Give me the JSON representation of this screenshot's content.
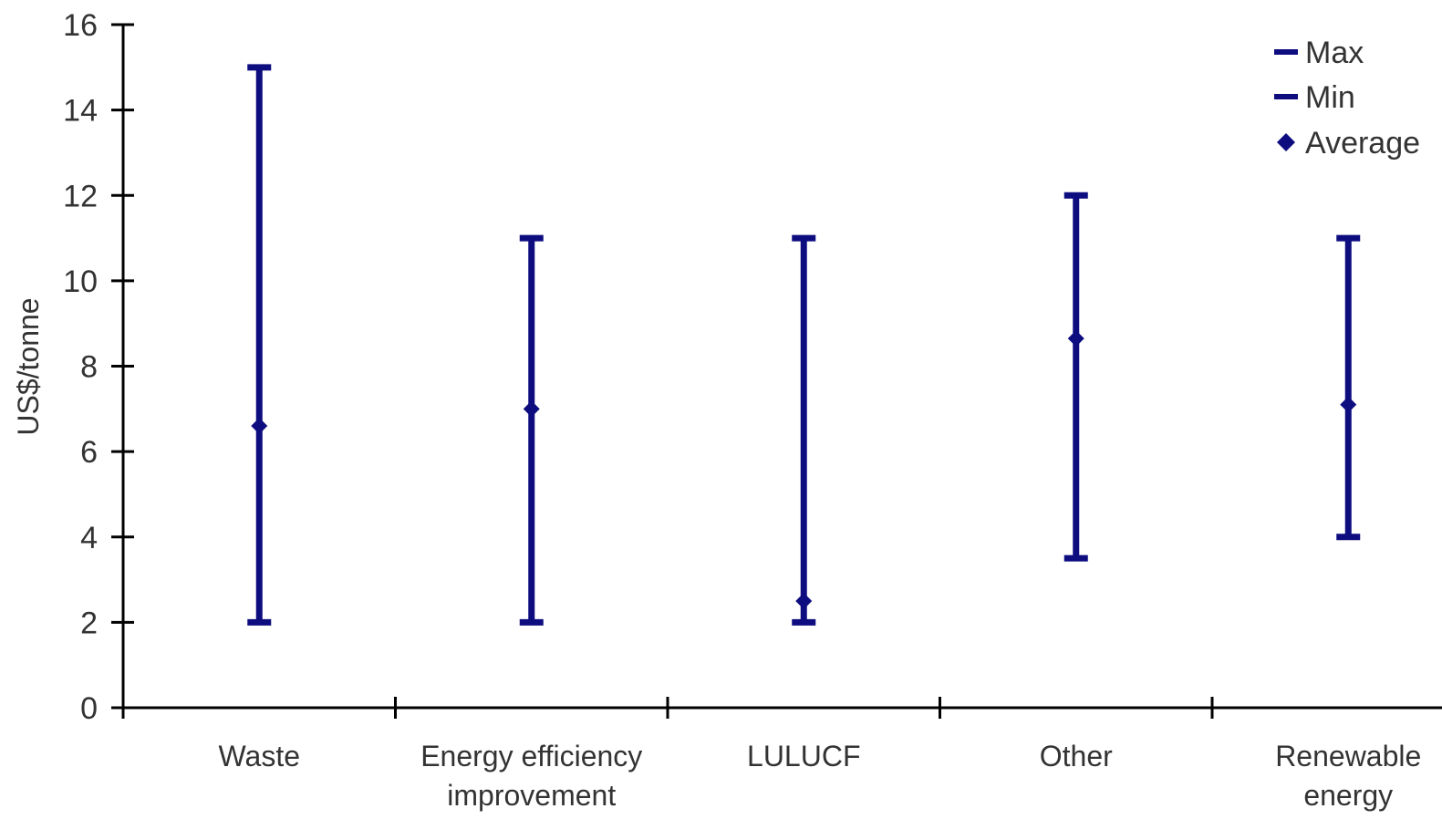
{
  "chart_data": {
    "type": "scatter",
    "ylabel": "US$/tonne",
    "xlabel": "",
    "ylim": [
      0,
      16
    ],
    "yticks": [
      0,
      2,
      4,
      6,
      8,
      10,
      12,
      14,
      16
    ],
    "categories": [
      [
        "Waste"
      ],
      [
        "Energy efficiency",
        "improvement"
      ],
      [
        "LULUCF"
      ],
      [
        "Other"
      ],
      [
        "Renewable",
        "energy"
      ]
    ],
    "series": [
      {
        "name": "Max",
        "values": [
          15,
          11,
          11,
          12,
          11
        ]
      },
      {
        "name": "Min",
        "values": [
          2,
          2,
          2,
          3.5,
          4
        ]
      },
      {
        "name": "Average",
        "values": [
          6.6,
          7.0,
          2.5,
          8.65,
          7.1
        ]
      }
    ],
    "legend": [
      "Max",
      "Min",
      "Average"
    ],
    "legend_position": "top-right",
    "grid": false,
    "colors": {
      "series": "#0d0d80",
      "axis": "#000000",
      "text": "#333333"
    }
  }
}
